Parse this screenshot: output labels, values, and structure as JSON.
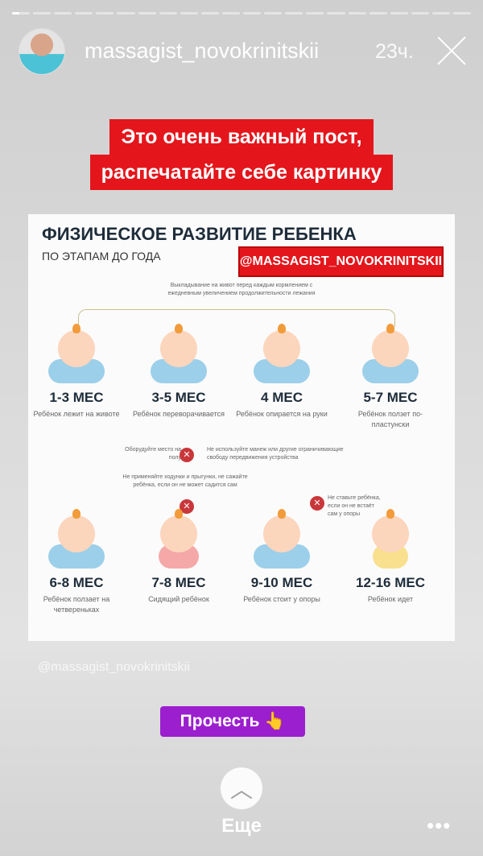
{
  "story": {
    "segments": 22,
    "current_progress": 0.4,
    "username": "massagist_novokrinitskii",
    "time": "23ч."
  },
  "banner": {
    "line1": "Это очень важный пост,",
    "line2": "распечатайте себе картинку"
  },
  "infographic": {
    "title": "ФИЗИЧЕСКОЕ РАЗВИТИЕ РЕБЕНКА",
    "subtitle": "ПО ЭТАПАМ ДО ГОДА",
    "tag": "@MASSAGIST_NOVOKRINITSKII",
    "note_top": "Выкладывание на живот перед каждым кормлением с ежедневным увеличением продолжительности лежания",
    "note_floor": "Оборудуйте место на полу",
    "note_playpen": "Не используйте манеж или другие ограничивающие свободу передвижения устройства",
    "note_walkers": "Не применяйте ходунки и прыгунки, не сажайте ребёнка, если он не может садится сам",
    "note_standing": "Не ставьте ребёнка, если он не встаёт сам у опоры",
    "stages": [
      {
        "age": "1-3 МЕС",
        "desc": "Ребёнок лежит на животе"
      },
      {
        "age": "3-5 МЕС",
        "desc": "Ребёнок переворачивается"
      },
      {
        "age": "4 МЕС",
        "desc": "Ребёнок опирается на руки"
      },
      {
        "age": "5-7 МЕС",
        "desc": "Ребёнок ползет по-пластунски"
      },
      {
        "age": "6-8 МЕС",
        "desc": "Ребёнок ползает на четвереньках"
      },
      {
        "age": "7-8 МЕС",
        "desc": "Сидящий ребёнок"
      },
      {
        "age": "9-10 МЕС",
        "desc": "Ребёнок стоит у опоры"
      },
      {
        "age": "12-16 МЕС",
        "desc": "Ребёнок идет"
      }
    ]
  },
  "watermark": "@massagist_novokrinitskii",
  "read_button": "Прочесть 👆",
  "more": {
    "label": "Еще",
    "dots": "•••"
  }
}
